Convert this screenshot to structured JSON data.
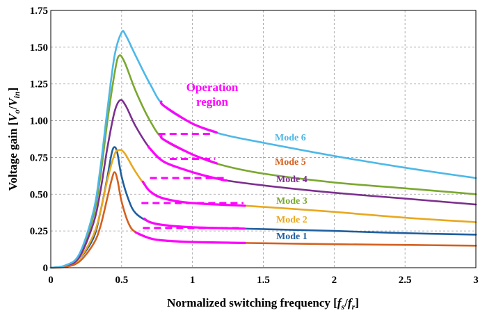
{
  "chart_data": {
    "type": "line",
    "xlabel": "Normalized switching frequency [fs/fr]",
    "xlabel_parts": {
      "main": "Normalized switching frequency [",
      "a": "f",
      "a_sub": "s",
      "slash": "/",
      "b": "f",
      "b_sub": "r",
      "end": "]"
    },
    "ylabel": "Voltage gain [Vo/Vin]",
    "ylabel_parts": {
      "main": "Voltage gain [",
      "a": "V",
      "a_sub": "o",
      "slash": "/",
      "b": "V",
      "b_sub": "in",
      "end": "]"
    },
    "xlim": [
      0,
      3
    ],
    "ylim": [
      0,
      1.75
    ],
    "grid": true,
    "x_ticks": [
      "0",
      "0.5",
      "1",
      "1.5",
      "2",
      "2.5",
      "3"
    ],
    "y_ticks": [
      "0",
      "0.25",
      "0.50",
      "0.75",
      "1.00",
      "1.25",
      "1.50",
      "1.75"
    ],
    "annotation": {
      "text_line1": "Operation",
      "text_line2": "region",
      "color": "#ff00ff"
    },
    "highlight_color": "#ff00ff",
    "series": [
      {
        "name": "Mode 1",
        "color": "#1f5f9f",
        "points": [
          [
            0,
            0
          ],
          [
            0.1,
            0.01
          ],
          [
            0.2,
            0.06
          ],
          [
            0.3,
            0.2
          ],
          [
            0.35,
            0.38
          ],
          [
            0.4,
            0.62
          ],
          [
            0.43,
            0.78
          ],
          [
            0.45,
            0.82
          ],
          [
            0.47,
            0.78
          ],
          [
            0.5,
            0.62
          ],
          [
            0.55,
            0.46
          ],
          [
            0.6,
            0.37
          ],
          [
            0.7,
            0.31
          ],
          [
            0.8,
            0.29
          ],
          [
            1.0,
            0.275
          ],
          [
            1.4,
            0.265
          ],
          [
            2.0,
            0.25
          ],
          [
            2.5,
            0.235
          ],
          [
            3.0,
            0.225
          ]
        ],
        "op_region": [
          0.66,
          1.37
        ],
        "dash_y": 0.27,
        "dash_x": [
          0.65,
          1.35
        ]
      },
      {
        "name": "Mode 2",
        "color": "#e8a81f",
        "points": [
          [
            0,
            0
          ],
          [
            0.1,
            0.01
          ],
          [
            0.2,
            0.06
          ],
          [
            0.3,
            0.22
          ],
          [
            0.35,
            0.38
          ],
          [
            0.4,
            0.6
          ],
          [
            0.45,
            0.77
          ],
          [
            0.48,
            0.8
          ],
          [
            0.52,
            0.78
          ],
          [
            0.6,
            0.65
          ],
          [
            0.7,
            0.52
          ],
          [
            0.8,
            0.47
          ],
          [
            1.0,
            0.44
          ],
          [
            1.4,
            0.42
          ],
          [
            2.0,
            0.38
          ],
          [
            2.5,
            0.34
          ],
          [
            3.0,
            0.31
          ]
        ],
        "op_region": [
          0.65,
          1.37
        ],
        "dash_y": 0.44,
        "dash_x": [
          0.64,
          1.36
        ]
      },
      {
        "name": "Mode 3",
        "color": "#7aa830",
        "points": [
          [
            0,
            0
          ],
          [
            0.1,
            0.012
          ],
          [
            0.2,
            0.08
          ],
          [
            0.3,
            0.35
          ],
          [
            0.35,
            0.62
          ],
          [
            0.4,
            1.0
          ],
          [
            0.45,
            1.32
          ],
          [
            0.48,
            1.44
          ],
          [
            0.52,
            1.4
          ],
          [
            0.6,
            1.2
          ],
          [
            0.7,
            1.0
          ],
          [
            0.8,
            0.87
          ],
          [
            1.0,
            0.77
          ],
          [
            1.2,
            0.7
          ],
          [
            1.5,
            0.64
          ],
          [
            2.0,
            0.58
          ],
          [
            2.5,
            0.54
          ],
          [
            3.0,
            0.5
          ]
        ],
        "op_region": [
          0.78,
          1.17
        ],
        "dash_y": 0.74,
        "dash_x": [
          0.84,
          1.16
        ]
      },
      {
        "name": "Mode 4",
        "color": "#7b2f8e",
        "points": [
          [
            0,
            0
          ],
          [
            0.1,
            0.01
          ],
          [
            0.2,
            0.07
          ],
          [
            0.3,
            0.3
          ],
          [
            0.35,
            0.52
          ],
          [
            0.4,
            0.82
          ],
          [
            0.45,
            1.06
          ],
          [
            0.49,
            1.14
          ],
          [
            0.53,
            1.1
          ],
          [
            0.6,
            0.96
          ],
          [
            0.7,
            0.81
          ],
          [
            0.8,
            0.72
          ],
          [
            1.0,
            0.65
          ],
          [
            1.2,
            0.6
          ],
          [
            1.5,
            0.56
          ],
          [
            2.0,
            0.51
          ],
          [
            2.5,
            0.47
          ],
          [
            3.0,
            0.43
          ]
        ],
        "op_region": [
          0.69,
          1.24
        ],
        "dash_y": 0.61,
        "dash_x": [
          0.7,
          1.24
        ]
      },
      {
        "name": "Mode 5",
        "color": "#d4601e",
        "points": [
          [
            0,
            0
          ],
          [
            0.1,
            0.005
          ],
          [
            0.2,
            0.04
          ],
          [
            0.3,
            0.16
          ],
          [
            0.35,
            0.28
          ],
          [
            0.4,
            0.48
          ],
          [
            0.43,
            0.6
          ],
          [
            0.45,
            0.65
          ],
          [
            0.47,
            0.6
          ],
          [
            0.5,
            0.45
          ],
          [
            0.55,
            0.3
          ],
          [
            0.6,
            0.24
          ],
          [
            0.7,
            0.2
          ],
          [
            0.8,
            0.185
          ],
          [
            1.0,
            0.175
          ],
          [
            1.4,
            0.168
          ],
          [
            2.0,
            0.16
          ],
          [
            2.5,
            0.155
          ],
          [
            3.0,
            0.15
          ]
        ],
        "op_region": [
          0.6,
          1.37
        ],
        "dash_y": null,
        "dash_x": null
      },
      {
        "name": "Mode 6",
        "color": "#4db8e8",
        "points": [
          [
            0,
            0
          ],
          [
            0.1,
            0.015
          ],
          [
            0.2,
            0.09
          ],
          [
            0.3,
            0.38
          ],
          [
            0.35,
            0.68
          ],
          [
            0.4,
            1.08
          ],
          [
            0.45,
            1.44
          ],
          [
            0.5,
            1.6
          ],
          [
            0.53,
            1.58
          ],
          [
            0.6,
            1.44
          ],
          [
            0.7,
            1.25
          ],
          [
            0.8,
            1.1
          ],
          [
            1.0,
            0.98
          ],
          [
            1.2,
            0.91
          ],
          [
            1.5,
            0.85
          ],
          [
            2.0,
            0.76
          ],
          [
            2.5,
            0.68
          ],
          [
            3.0,
            0.61
          ]
        ],
        "op_region": [
          0.78,
          1.17
        ],
        "dash_y": 0.91,
        "dash_x": [
          0.76,
          1.14
        ]
      }
    ],
    "mode_labels": [
      "Mode 6",
      "Mode 5",
      "Mode 4",
      "Mode 3",
      "Mode 2",
      "Mode 1"
    ]
  }
}
